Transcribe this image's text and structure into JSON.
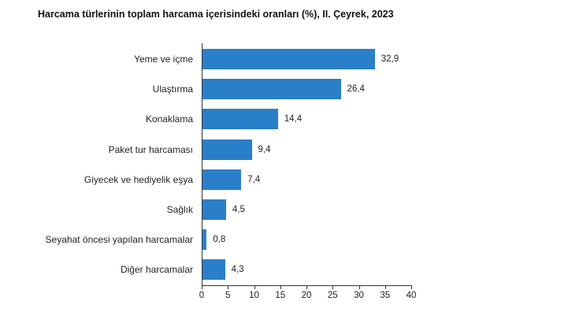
{
  "chart_data": {
    "type": "bar",
    "orientation": "horizontal",
    "title": "Harcama türlerinin toplam harcama içerisindeki oranları (%), II. Çeyrek, 2023",
    "xlabel": "",
    "ylabel": "",
    "categories": [
      "Yeme ve içme",
      "Ulaştırma",
      "Konaklama",
      "Paket tur harcaması",
      "Giyecek ve hediyelik eşya",
      "Sağlık",
      "Seyahat öncesi yapılan harcamalar",
      "Diğer harcamalar"
    ],
    "values": [
      32.9,
      26.4,
      14.4,
      9.4,
      7.4,
      4.5,
      0.8,
      4.3
    ],
    "value_labels": [
      "32,9",
      "26,4",
      "14,4",
      "9,4",
      "7,4",
      "4,5",
      "0,8",
      "4,3"
    ],
    "xlim": [
      0,
      40
    ],
    "x_ticks": [
      "0",
      "5",
      "10",
      "15",
      "20",
      "25",
      "30",
      "35",
      "40"
    ],
    "grid": false,
    "legend": null,
    "bar_color": "#2a7fc9"
  }
}
